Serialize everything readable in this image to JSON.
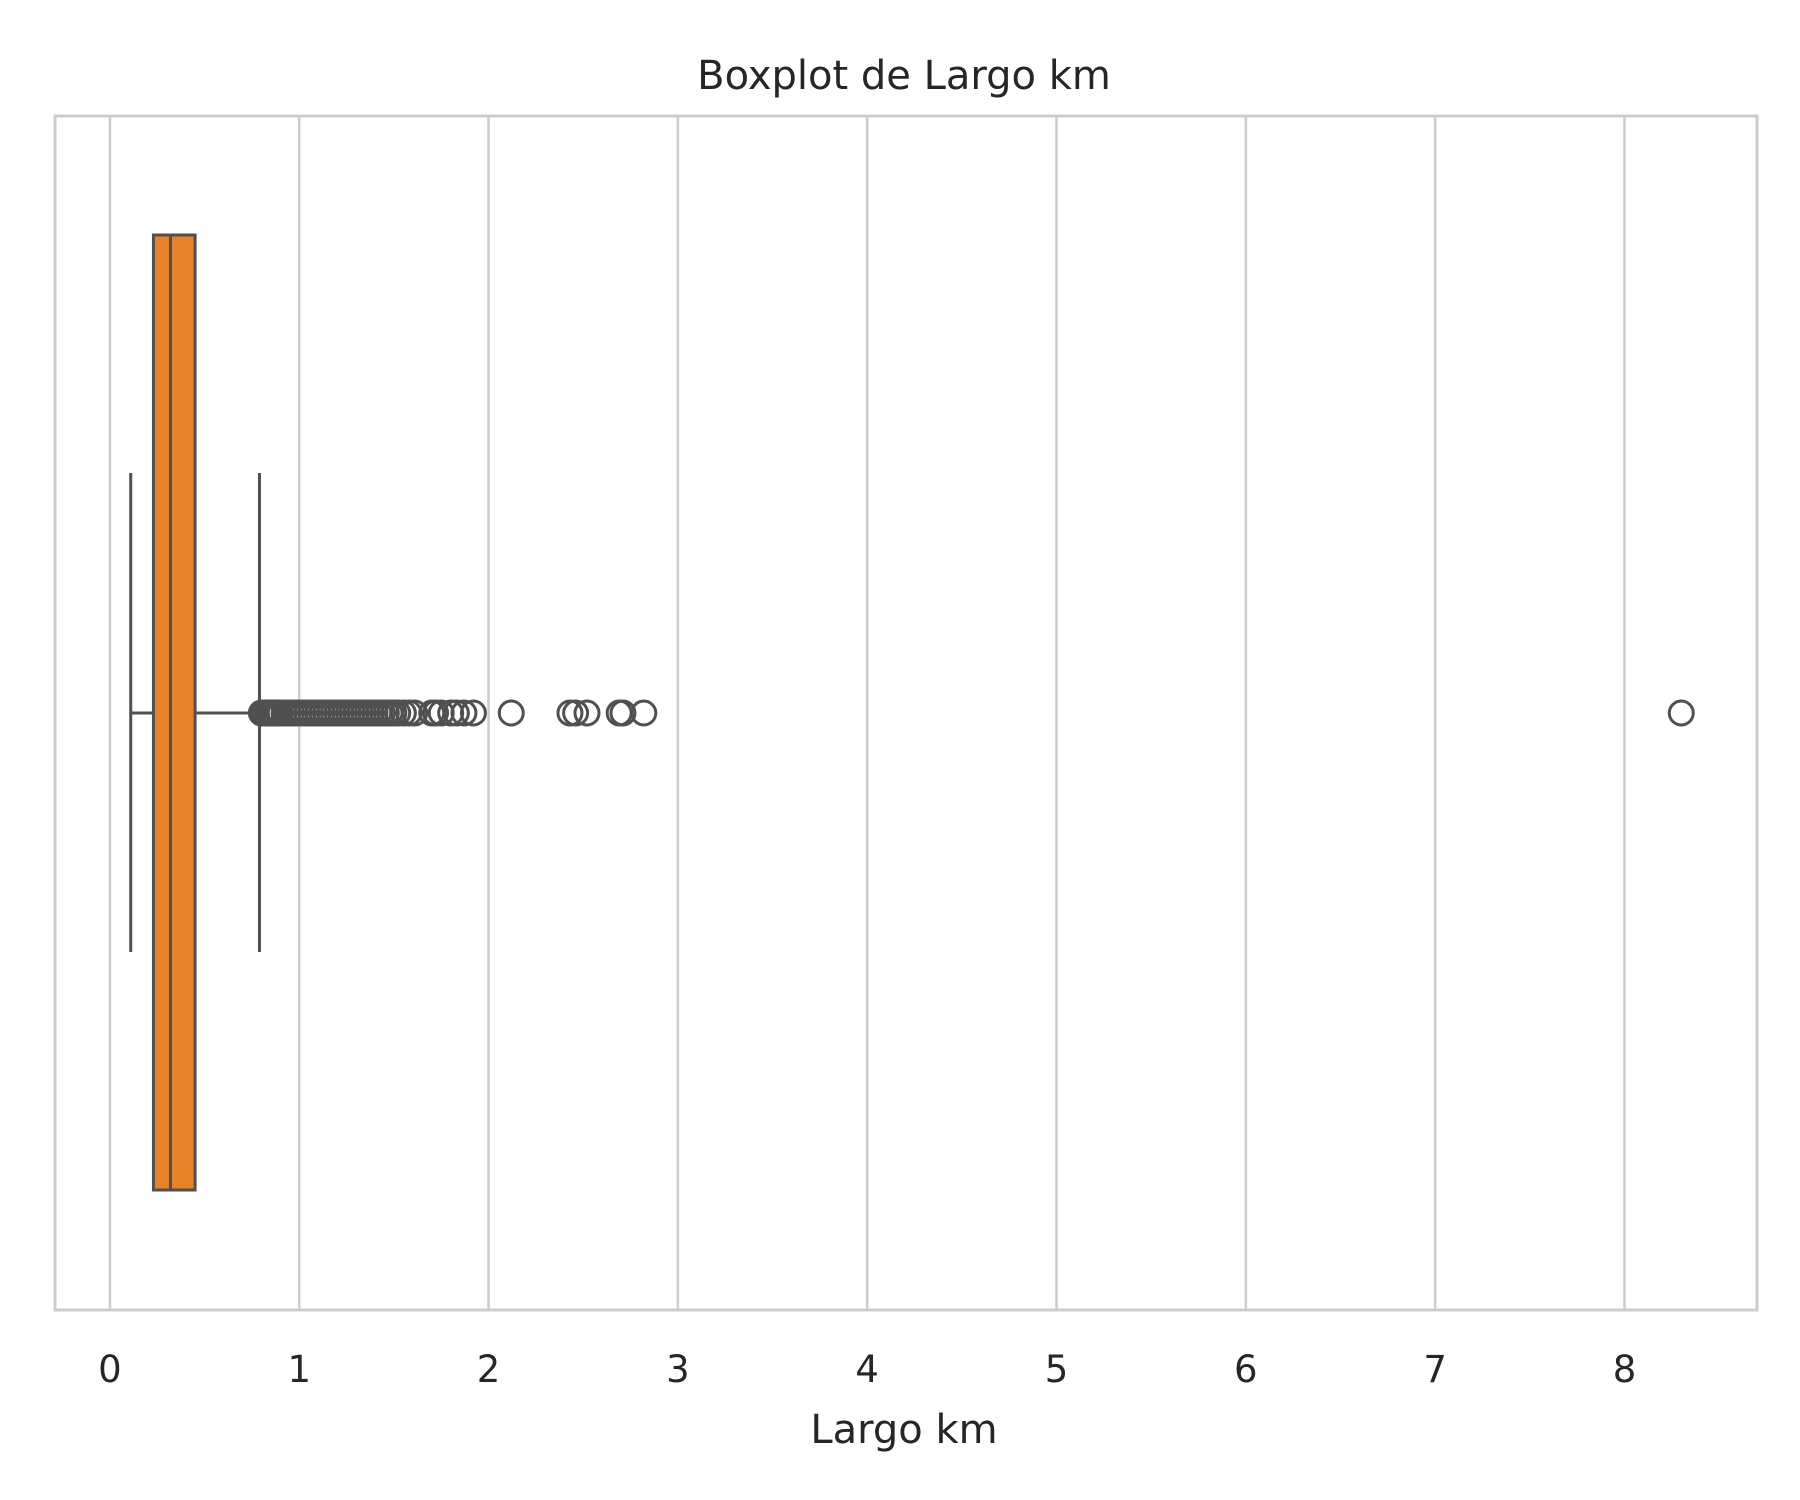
{
  "chart_data": {
    "type": "box",
    "orientation": "horizontal",
    "title": "Boxplot de Largo km",
    "xlabel": "Largo km",
    "ylabel": "",
    "xlim": [
      -0.29,
      8.7
    ],
    "x_ticks": [
      0,
      1,
      2,
      3,
      4,
      5,
      6,
      7,
      8
    ],
    "grid": "vertical",
    "legend": "none",
    "box": {
      "whisker_low": 0.11,
      "q1": 0.23,
      "median": 0.32,
      "q3": 0.45,
      "whisker_high": 0.79
    },
    "outliers": [
      0.8,
      0.81,
      0.82,
      0.83,
      0.84,
      0.85,
      0.86,
      0.87,
      0.88,
      0.89,
      0.9,
      0.92,
      0.94,
      0.96,
      0.98,
      1.0,
      1.02,
      1.04,
      1.06,
      1.08,
      1.1,
      1.12,
      1.14,
      1.16,
      1.18,
      1.2,
      1.22,
      1.24,
      1.26,
      1.28,
      1.3,
      1.32,
      1.34,
      1.36,
      1.38,
      1.4,
      1.42,
      1.44,
      1.46,
      1.48,
      1.5,
      1.52,
      1.55,
      1.58,
      1.61,
      1.7,
      1.72,
      1.75,
      1.8,
      1.83,
      1.87,
      1.92,
      2.12,
      2.43,
      2.46,
      2.52,
      2.69,
      2.71,
      2.82,
      8.3
    ],
    "colors": {
      "box_fill": "#e6822a",
      "line": "#505050",
      "grid": "#cccccc",
      "frame": "#cccccc"
    }
  }
}
